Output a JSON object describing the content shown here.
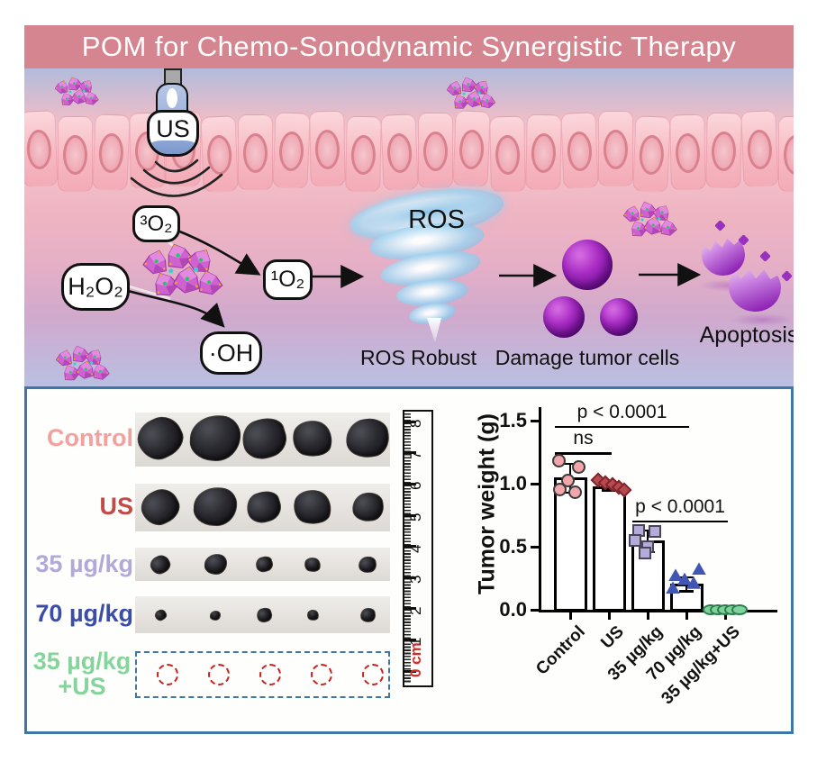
{
  "banner": {
    "title": "POM for Chemo-Sonodynamic Synergistic Therapy"
  },
  "illustration": {
    "probe_label": "US",
    "molecules": {
      "o3": "³O₂",
      "h2o2": "H₂O₂",
      "o1": "¹O₂",
      "oh": "·OH"
    },
    "ros_title": "ROS",
    "captions": {
      "ros": "ROS Robust",
      "damage": "Damage tumor cells",
      "apoptosis": "Apoptosis"
    },
    "icons": [
      "ultrasound-probe-icon",
      "pom-molecule-icon",
      "ros-tornado-icon",
      "tumor-cell-icon",
      "apoptotic-cell-icon"
    ]
  },
  "colors": {
    "banner": "#d5858f",
    "panel_border": "#3e76a4",
    "dashed_circle": "#c6201f",
    "ruler_zero": "#d42a2a"
  },
  "tumor_panel": {
    "rows": [
      {
        "label": "Control",
        "color": "#f2a19e",
        "type": "photo"
      },
      {
        "label": "US",
        "color": "#c14b48",
        "type": "photo"
      },
      {
        "label": "35 µg/kg",
        "color": "#b2a9d9",
        "type": "photo"
      },
      {
        "label": "70 µg/kg",
        "color": "#3b4da8",
        "type": "photo"
      },
      {
        "label": "35 µg/kg\n+US",
        "color": "#85d49c",
        "type": "dashed"
      }
    ],
    "ruler": {
      "labels": [
        "0 cm",
        "1",
        "2",
        "3",
        "4",
        "5",
        "6",
        "7",
        "8"
      ],
      "zero_color": "#d42a2a"
    }
  },
  "chart_data": {
    "type": "bar",
    "title": "",
    "ylabel": "Tumor weight (g)",
    "xlabel": "",
    "ylim": [
      0,
      1.5
    ],
    "yticks": [
      "0.0",
      "0.5",
      "1.0",
      "1.5"
    ],
    "grid": false,
    "legend": "none",
    "categories": [
      "Control",
      "US",
      "35 µg/kg",
      "70 µg/kg",
      "35 µg/kg+US"
    ],
    "bar_means": [
      1.05,
      0.98,
      0.55,
      0.21,
      0.0
    ],
    "error_high": [
      1.16,
      1.02,
      0.63,
      0.26,
      0.0
    ],
    "error_low": [
      0.93,
      0.95,
      0.46,
      0.15,
      0.0
    ],
    "points": [
      {
        "marker": "circle",
        "color": "#f2a6aa",
        "values": [
          1.18,
          1.13,
          1.02,
          0.95,
          0.93
        ]
      },
      {
        "marker": "diamond",
        "color": "#b8494f",
        "values": [
          1.03,
          1.01,
          0.99,
          0.97,
          0.95
        ]
      },
      {
        "marker": "square",
        "color": "#b4abd9",
        "values": [
          0.63,
          0.62,
          0.55,
          0.5,
          0.45
        ]
      },
      {
        "marker": "triangle",
        "color": "#4156b2",
        "values": [
          0.29,
          0.24,
          0.21,
          0.18,
          0.14
        ]
      },
      {
        "marker": "ellipse",
        "color": "#7fd29b",
        "values": [
          0.0,
          0.0,
          0.0,
          0.0,
          0.0
        ]
      }
    ],
    "annotations": [
      {
        "label": "p < 0.0001",
        "from": 0,
        "to": 3,
        "y": 1.46
      },
      {
        "label": "ns",
        "from": 0,
        "to": 1,
        "y": 1.25
      },
      {
        "label": "p < 0.0001",
        "from": 2,
        "to": 4,
        "y": 0.71
      }
    ]
  }
}
